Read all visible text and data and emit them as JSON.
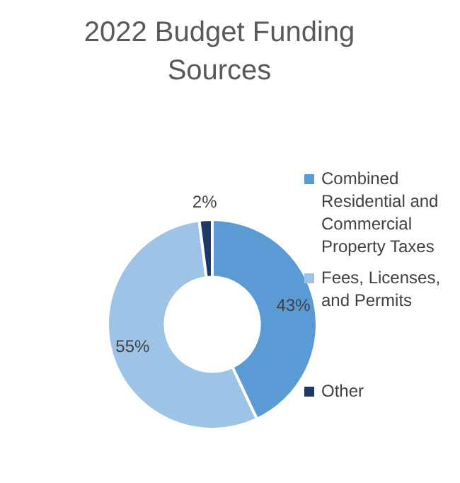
{
  "chart_data": {
    "type": "donut",
    "title": "2022 Budget Funding Sources",
    "categories": [
      "Combined Residential and Commercial Property Taxes",
      "Fees, Licenses, and Permits",
      "Other"
    ],
    "values": [
      43,
      55,
      2
    ],
    "value_labels": [
      "43%",
      "55%",
      "2%"
    ],
    "colors": [
      "#5b9bd5",
      "#9dc3e6",
      "#203864"
    ],
    "legend": "right"
  }
}
